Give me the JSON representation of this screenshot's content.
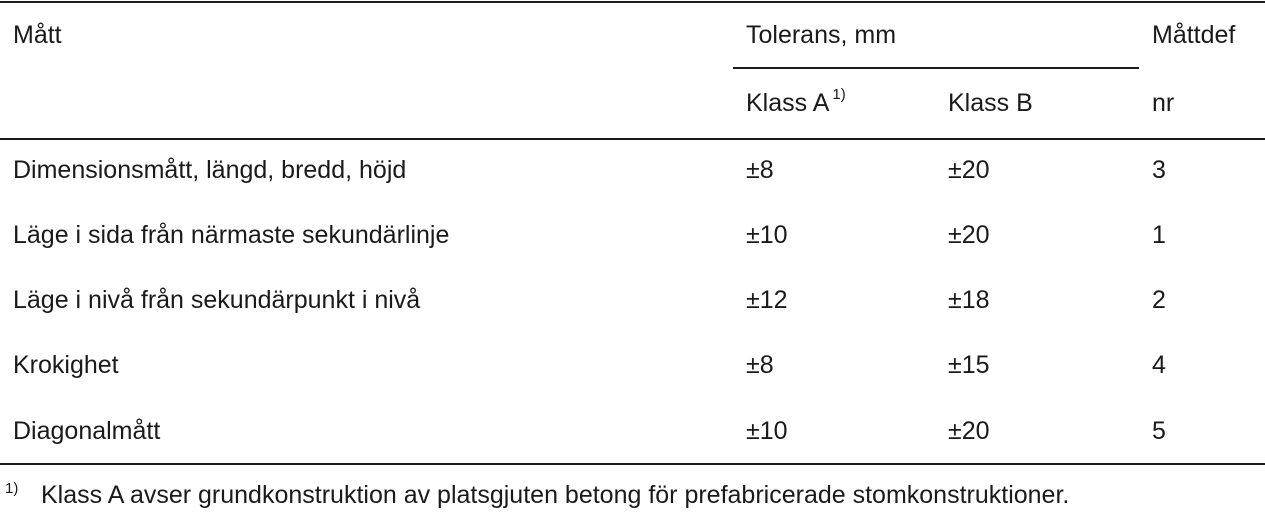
{
  "table": {
    "header": {
      "matt": "Mått",
      "tolerans": "Tolerans, mm",
      "klass_a": "Klass A",
      "klass_a_ref": "1)",
      "klass_b": "Klass B",
      "mattdef": "Måttdef",
      "nr": "nr"
    },
    "rows": [
      {
        "matt": "Dimensionsmått, längd, bredd, höjd",
        "a": "±8",
        "b": "±20",
        "nr": "3"
      },
      {
        "matt": "Läge i sida från närmaste sekundärlinje",
        "a": "±10",
        "b": "±20",
        "nr": "1"
      },
      {
        "matt": "Läge i nivå från sekundärpunkt i nivå",
        "a": "±12",
        "b": "±18",
        "nr": "2"
      },
      {
        "matt": "Krokighet",
        "a": "±8",
        "b": "±15",
        "nr": "4"
      },
      {
        "matt": "Diagonalmått",
        "a": "±10",
        "b": "±20",
        "nr": "5"
      }
    ]
  },
  "footnote": {
    "mark": "1)",
    "text": "Klass A avser grundkonstruktion av platsgjuten betong för prefabricerade stomkonstruktioner."
  }
}
